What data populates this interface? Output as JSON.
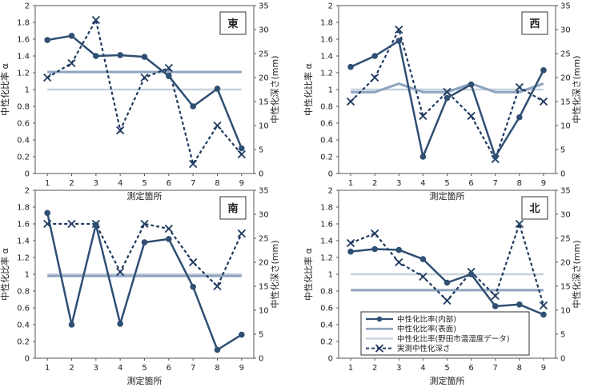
{
  "xlabel": "測定箇所",
  "ylabel_left": "中性化比率 α",
  "ylabel_right": "中性化深さ(mm)",
  "legend": [
    {
      "label": "中性化比率(内部)",
      "key": "internal"
    },
    {
      "label": "中性化比率(表面)",
      "key": "surface"
    },
    {
      "label": "中性化比率(野田市温湿度データ)",
      "key": "noda"
    },
    {
      "label": "実測中性化深さ",
      "key": "depth"
    }
  ],
  "colors": {
    "internal": "#2f4f73",
    "surface": "#8ea4bf",
    "noda": "#c7d2de",
    "depth": "#1f3a5f"
  },
  "chart_data": [
    {
      "type": "line",
      "direction": "東",
      "x": [
        1,
        2,
        3,
        4,
        5,
        6,
        7,
        8,
        9
      ],
      "ylim": [
        0,
        2
      ],
      "y2lim": [
        0,
        35
      ],
      "y_ticks": [
        "0",
        "0.2",
        "0.4",
        "0.6",
        "0.8",
        "1",
        "1.2",
        "1.4",
        "1.6",
        "1.8",
        "2"
      ],
      "y2_ticks": [
        "0",
        "5",
        "10",
        "15",
        "20",
        "25",
        "30",
        "35"
      ],
      "series": [
        {
          "key": "internal",
          "name": "中性化比率(内部)",
          "axis": "left",
          "values": [
            1.59,
            1.64,
            1.4,
            1.41,
            1.39,
            1.16,
            0.8,
            1.01,
            0.3
          ]
        },
        {
          "key": "surface",
          "name": "中性化比率(表面)",
          "axis": "left",
          "values": [
            1.21,
            1.21,
            1.21,
            1.21,
            1.21,
            1.21,
            1.21,
            1.21,
            1.21
          ]
        },
        {
          "key": "noda",
          "name": "中性化比率(野田市温湿度データ)",
          "axis": "left",
          "values": [
            1.0,
            1.0,
            1.0,
            1.0,
            1.0,
            1.0,
            1.0,
            1.0,
            1.0
          ]
        },
        {
          "key": "depth",
          "name": "実測中性化深さ",
          "axis": "right",
          "values": [
            20,
            23,
            32,
            9,
            20,
            22,
            2,
            10,
            4
          ]
        }
      ]
    },
    {
      "type": "line",
      "direction": "西",
      "x": [
        1,
        2,
        3,
        4,
        5,
        6,
        7,
        8,
        9
      ],
      "ylim": [
        0,
        2
      ],
      "y2lim": [
        0,
        35
      ],
      "y_ticks": [
        "0",
        "0.2",
        "0.4",
        "0.6",
        "0.8",
        "1",
        "1.2",
        "1.4",
        "1.6",
        "1.8",
        "2"
      ],
      "y2_ticks": [
        "0",
        "5",
        "10",
        "15",
        "20",
        "25",
        "30",
        "35"
      ],
      "series": [
        {
          "key": "internal",
          "name": "中性化比率(内部)",
          "axis": "left",
          "values": [
            1.27,
            1.4,
            1.58,
            0.2,
            0.9,
            1.06,
            0.2,
            0.67,
            1.23
          ]
        },
        {
          "key": "surface",
          "name": "中性化比率(表面)",
          "axis": "left",
          "values": [
            0.97,
            0.97,
            1.07,
            0.97,
            0.97,
            1.07,
            0.97,
            0.97,
            1.07
          ]
        },
        {
          "key": "noda",
          "name": "中性化比率(野田市温湿度データ)",
          "axis": "left",
          "values": [
            1.0,
            1.0,
            1.0,
            1.0,
            1.0,
            1.0,
            1.0,
            1.0,
            1.0
          ]
        },
        {
          "key": "depth",
          "name": "実測中性化深さ",
          "axis": "right",
          "values": [
            15,
            20,
            30,
            12,
            17,
            12,
            3,
            18,
            15
          ]
        }
      ]
    },
    {
      "type": "line",
      "direction": "南",
      "x": [
        1,
        2,
        3,
        4,
        5,
        6,
        7,
        8,
        9
      ],
      "ylim": [
        0,
        2
      ],
      "y2lim": [
        0,
        35
      ],
      "y_ticks": [
        "0",
        "0.2",
        "0.4",
        "0.6",
        "0.8",
        "1",
        "1.2",
        "1.4",
        "1.6",
        "1.8",
        "2"
      ],
      "y2_ticks": [
        "0",
        "5",
        "10",
        "15",
        "20",
        "25",
        "30",
        "35"
      ],
      "series": [
        {
          "key": "internal",
          "name": "中性化比率(内部)",
          "axis": "left",
          "values": [
            1.73,
            0.4,
            1.59,
            0.41,
            1.38,
            1.42,
            0.85,
            0.1,
            0.28
          ]
        },
        {
          "key": "surface",
          "name": "中性化比率(表面)",
          "axis": "left",
          "values": [
            0.98,
            0.98,
            0.98,
            0.98,
            0.98,
            0.98,
            0.98,
            0.98,
            0.98
          ]
        },
        {
          "key": "noda",
          "name": "中性化比率(野田市温湿度データ)",
          "axis": "left",
          "values": [
            1.0,
            1.0,
            1.0,
            1.0,
            1.0,
            1.0,
            1.0,
            1.0,
            1.0
          ]
        },
        {
          "key": "depth",
          "name": "実測中性化深さ",
          "axis": "right",
          "values": [
            28,
            28,
            28,
            18,
            28,
            27,
            20,
            15,
            26
          ]
        }
      ]
    },
    {
      "type": "line",
      "direction": "北",
      "x": [
        1,
        2,
        3,
        4,
        5,
        6,
        7,
        8,
        9
      ],
      "ylim": [
        0,
        2
      ],
      "y2lim": [
        0,
        35
      ],
      "y_ticks": [
        "0",
        "0.2",
        "0.4",
        "0.6",
        "0.8",
        "1",
        "1.2",
        "1.4",
        "1.6",
        "1.8",
        "2"
      ],
      "y2_ticks": [
        "0",
        "5",
        "10",
        "15",
        "20",
        "25",
        "30",
        "35"
      ],
      "series": [
        {
          "key": "internal",
          "name": "中性化比率(内部)",
          "axis": "left",
          "values": [
            1.27,
            1.3,
            1.29,
            1.18,
            0.9,
            1.0,
            0.62,
            0.64,
            0.52
          ]
        },
        {
          "key": "surface",
          "name": "中性化比率(表面)",
          "axis": "left",
          "values": [
            0.81,
            0.81,
            0.81,
            0.81,
            0.81,
            0.81,
            0.81,
            0.81,
            0.81
          ]
        },
        {
          "key": "noda",
          "name": "中性化比率(野田市温湿度データ)",
          "axis": "left",
          "values": [
            1.0,
            1.0,
            1.0,
            1.0,
            1.0,
            1.0,
            1.0,
            1.0,
            1.0
          ]
        },
        {
          "key": "depth",
          "name": "実測中性化深さ",
          "axis": "right",
          "values": [
            24,
            26,
            20,
            17,
            12,
            18,
            13,
            28,
            11
          ]
        }
      ]
    }
  ]
}
